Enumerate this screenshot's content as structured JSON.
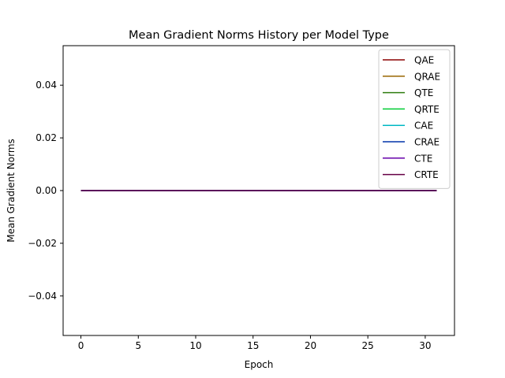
{
  "chart_data": {
    "type": "line",
    "title": "Mean Gradient Norms History per Model Type",
    "xlabel": "Epoch",
    "ylabel": "Mean Gradient Norms",
    "xlim": [
      -1.55,
      32.55
    ],
    "ylim": [
      -0.055,
      0.055
    ],
    "xticks": [
      0,
      5,
      10,
      15,
      20,
      25,
      30
    ],
    "yticks": [
      -0.04,
      -0.02,
      0.0,
      0.02,
      0.04
    ],
    "ytick_labels": [
      "−0.04",
      "−0.02",
      "0.00",
      "0.02",
      "0.04"
    ],
    "grid": false,
    "legend_position": "top-right",
    "x": [
      0,
      31
    ],
    "series": [
      {
        "name": "QAE",
        "color": "#8b0000",
        "values": [
          0,
          0
        ]
      },
      {
        "name": "QRAE",
        "color": "#996600",
        "values": [
          0,
          0
        ]
      },
      {
        "name": "QTE",
        "color": "#2e7d0f",
        "values": [
          0,
          0
        ]
      },
      {
        "name": "QRTE",
        "color": "#00cc33",
        "values": [
          0,
          0
        ]
      },
      {
        "name": "CAE",
        "color": "#00b8c4",
        "values": [
          0,
          0
        ]
      },
      {
        "name": "CRAE",
        "color": "#0033aa",
        "values": [
          0,
          0
        ]
      },
      {
        "name": "CTE",
        "color": "#6600aa",
        "values": [
          0,
          0
        ]
      },
      {
        "name": "CRTE",
        "color": "#660044",
        "values": [
          0,
          0
        ]
      }
    ]
  }
}
